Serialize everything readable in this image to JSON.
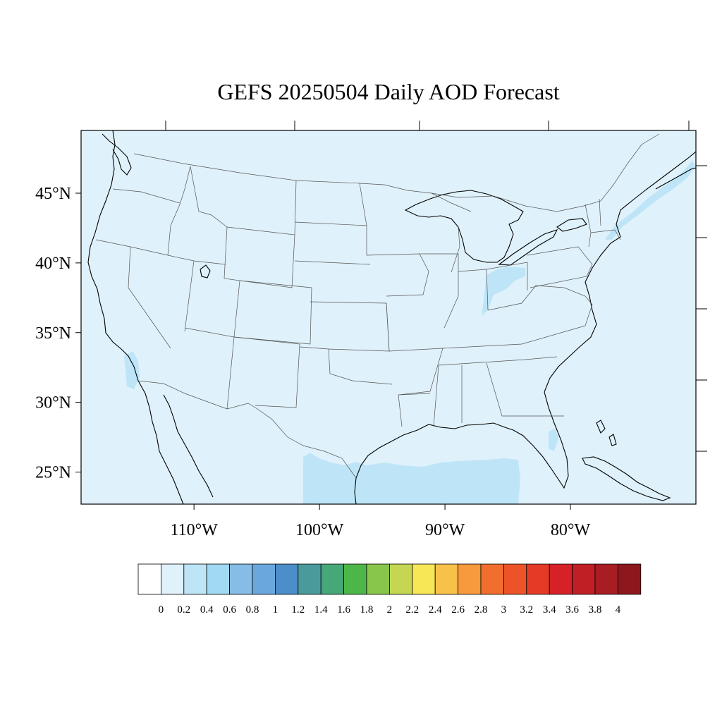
{
  "title": "GEFS 20250504 Daily AOD Forecast",
  "map": {
    "lon_range": [
      -119,
      -70
    ],
    "lat_range": [
      22.7,
      49.5
    ],
    "lat_ticks": [
      {
        "value": 45,
        "label": "45°N"
      },
      {
        "value": 40,
        "label": "40°N"
      },
      {
        "value": 35,
        "label": "35°N"
      },
      {
        "value": 30,
        "label": "30°N"
      },
      {
        "value": 25,
        "label": "25°N"
      }
    ],
    "lon_ticks": [
      {
        "value": -110,
        "label": "110°W"
      },
      {
        "value": -100,
        "label": "100°W"
      },
      {
        "value": -90,
        "label": "90°W"
      },
      {
        "value": -80,
        "label": "80°W"
      }
    ],
    "background_color": "#dff1fa",
    "aod_regions": [
      {
        "name": "gulf-of-mexico-plume",
        "level": "0.2–0.4",
        "color": "#bee5f7"
      },
      {
        "name": "ohio-valley-plume",
        "level": "0.2–0.4",
        "color": "#bee5f7"
      },
      {
        "name": "new-england-plume",
        "level": "0.2–0.4",
        "color": "#bee5f7"
      },
      {
        "name": "southern-california-plume",
        "level": "0.2–0.4",
        "color": "#bee5f7"
      },
      {
        "name": "florida-gulf-plume",
        "level": "0.2–0.4",
        "color": "#bee5f7"
      }
    ]
  },
  "colorbar": {
    "labels": [
      "0",
      "0.2",
      "0.4",
      "0.6",
      "0.8",
      "1",
      "1.2",
      "1.4",
      "1.6",
      "1.8",
      "2",
      "2.2",
      "2.4",
      "2.6",
      "2.8",
      "3",
      "3.2",
      "3.4",
      "3.6",
      "3.8",
      "4"
    ],
    "colors": [
      "#ffffff",
      "#dff1fa",
      "#bee5f7",
      "#a1d8f2",
      "#85bde6",
      "#6aa7dc",
      "#4b8ec9",
      "#4a9a9c",
      "#46a879",
      "#4cb748",
      "#88c54b",
      "#c5d752",
      "#f7e655",
      "#f8c14a",
      "#f7993d",
      "#f26e2e",
      "#ec5329",
      "#e53a26",
      "#d62128",
      "#bf1f25",
      "#a81d22",
      "#8c181d"
    ]
  }
}
